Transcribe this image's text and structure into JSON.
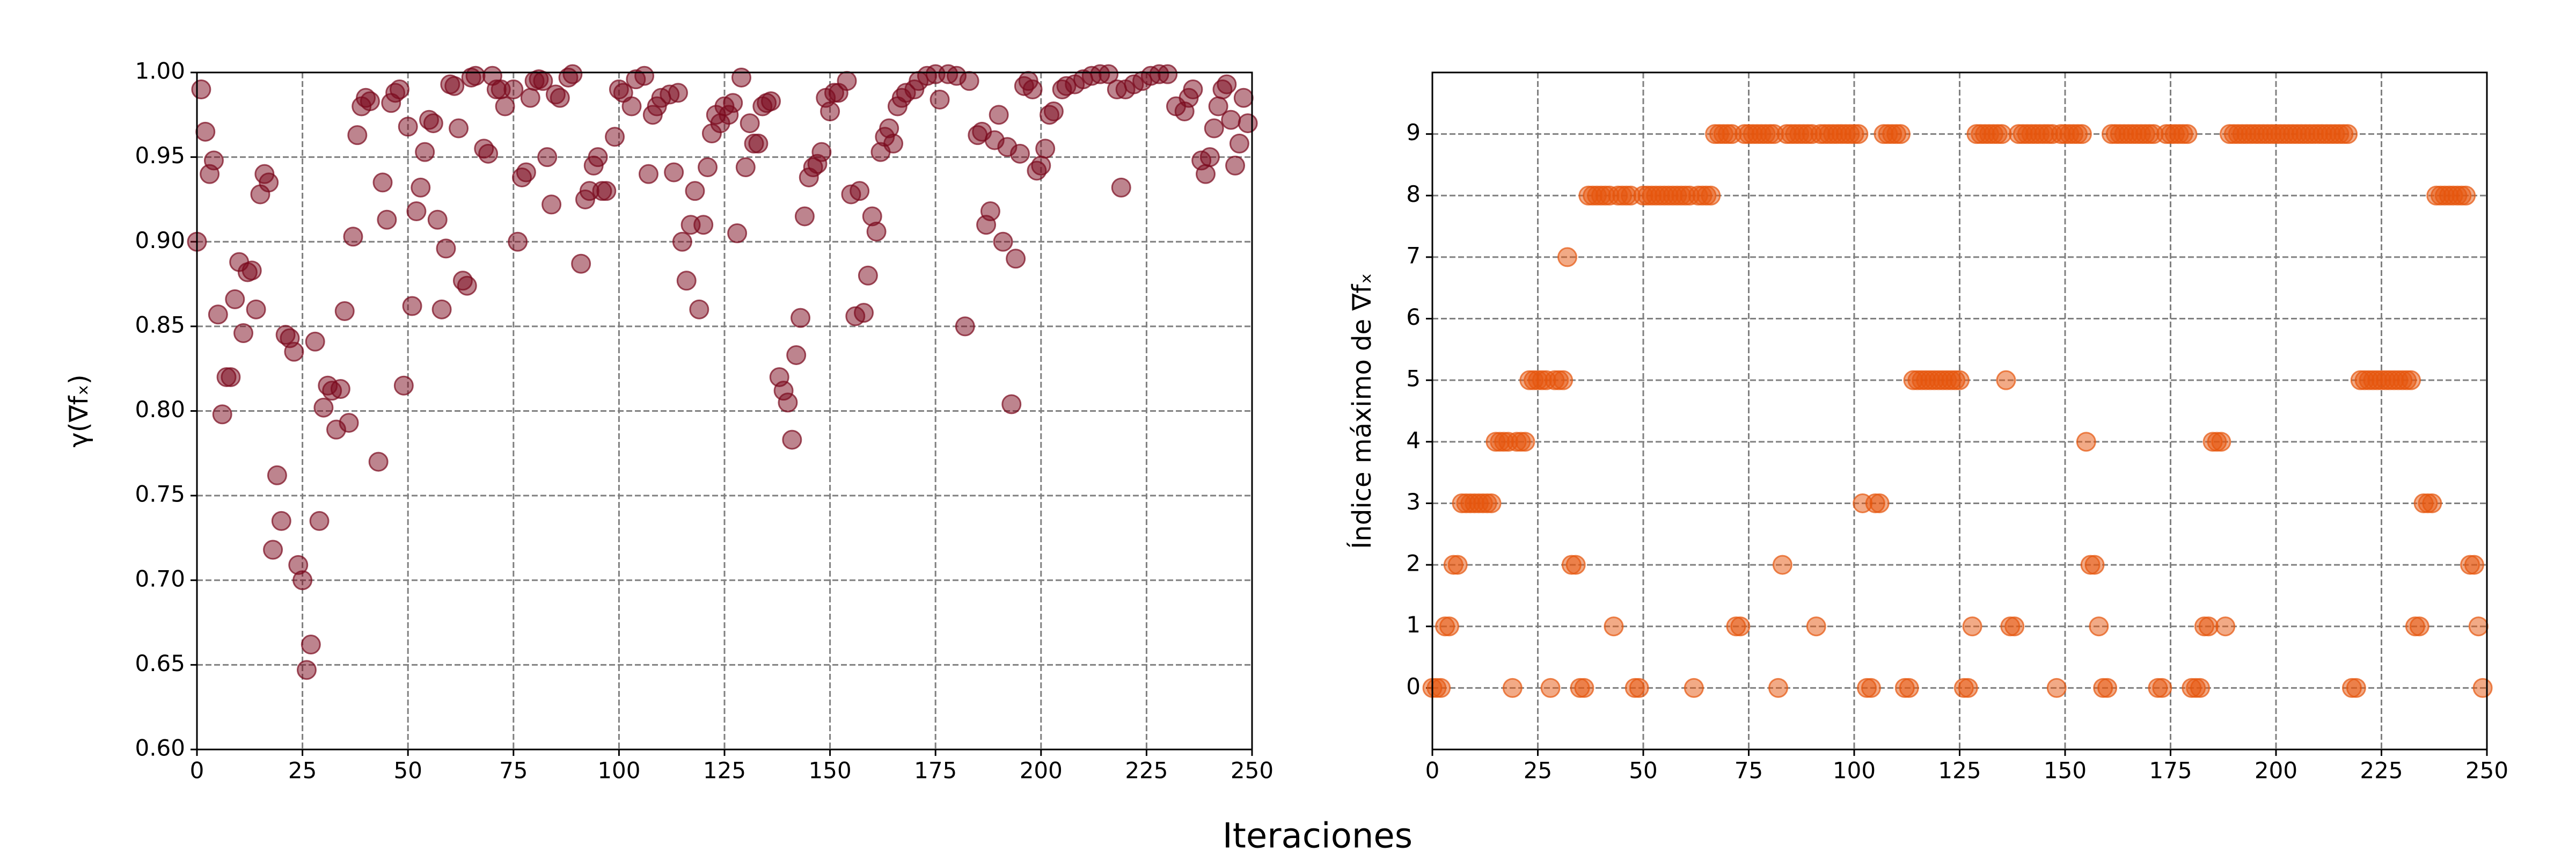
{
  "x_label": "Iteraciones",
  "chart_data": [
    {
      "type": "scatter",
      "y_label": "γ(∇fₓ)",
      "color": "#7b0a1e",
      "grid": true,
      "xlim": [
        0,
        250
      ],
      "xticks": [
        0,
        25,
        50,
        75,
        100,
        125,
        150,
        175,
        200,
        225,
        250
      ],
      "ylim": [
        0.6,
        1.0
      ],
      "yticks": [
        {
          "value": 0.6,
          "label": "0.60"
        },
        {
          "value": 0.65,
          "label": "0.65"
        },
        {
          "value": 0.7,
          "label": "0.70"
        },
        {
          "value": 0.75,
          "label": "0.75"
        },
        {
          "value": 0.8,
          "label": "0.80"
        },
        {
          "value": 0.85,
          "label": "0.85"
        },
        {
          "value": 0.9,
          "label": "0.90"
        },
        {
          "value": 0.95,
          "label": "0.95"
        },
        {
          "value": 1.0,
          "label": "1.00"
        }
      ],
      "x": [
        0,
        1,
        2,
        3,
        4,
        5,
        6,
        7,
        8,
        9,
        10,
        11,
        12,
        13,
        14,
        15,
        16,
        17,
        18,
        19,
        20,
        21,
        22,
        23,
        24,
        25,
        26,
        27,
        28,
        29,
        30,
        31,
        32,
        33,
        34,
        35,
        36,
        37,
        38,
        39,
        40,
        41,
        43,
        44,
        45,
        46,
        47,
        48,
        49,
        50,
        51,
        52,
        53,
        54,
        55,
        56,
        57,
        58,
        59,
        60,
        61,
        62,
        63,
        64,
        65,
        66,
        68,
        69,
        70,
        71,
        72,
        73,
        75,
        76,
        77,
        78,
        79,
        80,
        81,
        82,
        83,
        84,
        85,
        86,
        88,
        89,
        91,
        92,
        93,
        94,
        95,
        96,
        97,
        99,
        100,
        101,
        103,
        104,
        106,
        107,
        108,
        109,
        110,
        112,
        113,
        114,
        115,
        116,
        117,
        118,
        119,
        120,
        121,
        122,
        123,
        124,
        125,
        126,
        127,
        128,
        129,
        130,
        131,
        132,
        133,
        134,
        135,
        136,
        138,
        139,
        140,
        141,
        142,
        143,
        144,
        145,
        146,
        147,
        148,
        149,
        150,
        151,
        152,
        154,
        155,
        156,
        157,
        158,
        159,
        160,
        161,
        162,
        163,
        164,
        165,
        166,
        167,
        168,
        170,
        171,
        173,
        175,
        176,
        178,
        180,
        182,
        183,
        185,
        186,
        187,
        188,
        189,
        190,
        191,
        192,
        193,
        194,
        195,
        196,
        197,
        198,
        199,
        200,
        201,
        202,
        203,
        205,
        206,
        208,
        210,
        212,
        214,
        216,
        218,
        219,
        220,
        222,
        224,
        226,
        228,
        230,
        232,
        234,
        235,
        236,
        238,
        239,
        240,
        241,
        242,
        243,
        244,
        245,
        246,
        247,
        248,
        249
      ],
      "values": [
        0.9,
        0.99,
        0.965,
        0.94,
        0.948,
        0.857,
        0.798,
        0.82,
        0.82,
        0.866,
        0.888,
        0.846,
        0.882,
        0.883,
        0.86,
        0.928,
        0.94,
        0.935,
        0.718,
        0.762,
        0.735,
        0.845,
        0.843,
        0.835,
        0.709,
        0.7,
        0.647,
        0.662,
        0.841,
        0.735,
        0.802,
        0.815,
        0.812,
        0.789,
        0.813,
        0.859,
        0.793,
        0.903,
        0.963,
        0.98,
        0.985,
        0.983,
        0.77,
        0.935,
        0.913,
        0.982,
        0.988,
        0.99,
        0.815,
        0.968,
        0.862,
        0.918,
        0.932,
        0.953,
        0.972,
        0.97,
        0.913,
        0.86,
        0.896,
        0.993,
        0.992,
        0.967,
        0.877,
        0.874,
        0.997,
        0.998,
        0.955,
        0.952,
        0.998,
        0.99,
        0.99,
        0.98,
        0.99,
        0.9,
        0.938,
        0.941,
        0.985,
        0.995,
        0.996,
        0.995,
        0.95,
        0.922,
        0.987,
        0.985,
        0.997,
        0.999,
        0.887,
        0.925,
        0.93,
        0.945,
        0.95,
        0.93,
        0.93,
        0.962,
        0.99,
        0.988,
        0.98,
        0.996,
        0.998,
        0.94,
        0.975,
        0.98,
        0.985,
        0.987,
        0.941,
        0.988,
        0.9,
        0.877,
        0.91,
        0.93,
        0.86,
        0.91,
        0.944,
        0.964,
        0.975,
        0.97,
        0.98,
        0.975,
        0.982,
        0.905,
        0.997,
        0.944,
        0.97,
        0.958,
        0.958,
        0.98,
        0.982,
        0.983,
        0.82,
        0.812,
        0.805,
        0.783,
        0.833,
        0.855,
        0.915,
        0.938,
        0.944,
        0.946,
        0.953,
        0.985,
        0.977,
        0.988,
        0.988,
        0.995,
        0.928,
        0.856,
        0.93,
        0.858,
        0.88,
        0.915,
        0.906,
        0.953,
        0.962,
        0.967,
        0.958,
        0.98,
        0.985,
        0.988,
        0.99,
        0.995,
        0.998,
        0.999,
        0.984,
        0.999,
        0.998,
        0.85,
        0.995,
        0.963,
        0.965,
        0.91,
        0.918,
        0.96,
        0.975,
        0.9,
        0.956,
        0.804,
        0.89,
        0.952,
        0.992,
        0.995,
        0.99,
        0.942,
        0.945,
        0.955,
        0.975,
        0.977,
        0.99,
        0.992,
        0.993,
        0.996,
        0.998,
        0.999,
        0.999,
        0.99,
        0.932,
        0.99,
        0.993,
        0.995,
        0.998,
        0.999,
        0.999,
        0.98,
        0.977,
        0.985,
        0.99,
        0.948,
        0.94,
        0.95,
        0.967,
        0.98,
        0.99,
        0.993,
        0.972,
        0.945,
        0.958,
        0.985,
        0.97
      ]
    },
    {
      "type": "scatter",
      "y_label": "Índice máximo de ∇fₓ",
      "color": "#e6550d",
      "grid": true,
      "xlim": [
        0,
        250
      ],
      "xticks": [
        0,
        25,
        50,
        75,
        100,
        125,
        150,
        175,
        200,
        225,
        250
      ],
      "ylim": [
        -1,
        10
      ],
      "yticks": [
        0,
        1,
        2,
        3,
        4,
        5,
        6,
        7,
        8,
        9
      ],
      "x": [
        0,
        1,
        2,
        3,
        4,
        5,
        6,
        7,
        8,
        9,
        10,
        11,
        12,
        13,
        14,
        15,
        16,
        17,
        18,
        19,
        20,
        21,
        22,
        23,
        24,
        25,
        26,
        27,
        28,
        29,
        30,
        31,
        32,
        33,
        34,
        35,
        36,
        37,
        38,
        39,
        40,
        41,
        42,
        43,
        44,
        45,
        46,
        47,
        48,
        49,
        50,
        51,
        52,
        53,
        54,
        55,
        56,
        57,
        58,
        59,
        60,
        61,
        62,
        63,
        64,
        65,
        66,
        67,
        68,
        69,
        70,
        71,
        72,
        73,
        74,
        75,
        76,
        77,
        78,
        79,
        80,
        81,
        82,
        83,
        84,
        85,
        86,
        87,
        88,
        89,
        90,
        91,
        92,
        93,
        94,
        95,
        96,
        97,
        98,
        99,
        100,
        101,
        102,
        103,
        104,
        105,
        106,
        107,
        108,
        109,
        110,
        111,
        112,
        113,
        114,
        115,
        116,
        117,
        118,
        119,
        120,
        121,
        122,
        123,
        124,
        125,
        126,
        127,
        128,
        129,
        130,
        131,
        132,
        133,
        134,
        135,
        136,
        137,
        138,
        139,
        140,
        141,
        142,
        143,
        144,
        145,
        146,
        147,
        148,
        149,
        150,
        151,
        152,
        153,
        154,
        155,
        156,
        157,
        158,
        159,
        160,
        161,
        162,
        163,
        164,
        165,
        166,
        167,
        168,
        169,
        170,
        171,
        172,
        173,
        174,
        175,
        176,
        177,
        178,
        179,
        180,
        181,
        182,
        183,
        184,
        185,
        186,
        187,
        188,
        189,
        190,
        191,
        192,
        193,
        194,
        195,
        196,
        197,
        198,
        199,
        200,
        201,
        202,
        203,
        204,
        205,
        206,
        207,
        208,
        209,
        210,
        211,
        212,
        213,
        214,
        215,
        216,
        217,
        218,
        219,
        220,
        221,
        222,
        223,
        224,
        225,
        226,
        227,
        228,
        229,
        230,
        231,
        232,
        233,
        234,
        235,
        236,
        237,
        238,
        239,
        240,
        241,
        242,
        243,
        244,
        245,
        246,
        247,
        248,
        249
      ],
      "values": [
        0,
        0,
        0,
        1,
        1,
        2,
        2,
        3,
        3,
        3,
        3,
        3,
        3,
        3,
        3,
        4,
        4,
        4,
        4,
        0,
        4,
        4,
        4,
        5,
        5,
        5,
        5,
        5,
        0,
        5,
        5,
        5,
        7,
        2,
        2,
        0,
        0,
        8,
        8,
        8,
        8,
        8,
        8,
        1,
        8,
        8,
        8,
        8,
        0,
        0,
        8,
        8,
        8,
        8,
        8,
        8,
        8,
        8,
        8,
        8,
        8,
        8,
        0,
        8,
        8,
        8,
        8,
        9,
        9,
        9,
        9,
        9,
        1,
        1,
        9,
        9,
        9,
        9,
        9,
        9,
        9,
        9,
        0,
        2,
        9,
        9,
        9,
        9,
        9,
        9,
        9,
        1,
        9,
        9,
        9,
        9,
        9,
        9,
        9,
        9,
        9,
        9,
        3,
        0,
        0,
        3,
        3,
        9,
        9,
        9,
        9,
        9,
        0,
        0,
        5,
        5,
        5,
        5,
        5,
        5,
        5,
        5,
        5,
        5,
        5,
        5,
        0,
        0,
        1,
        9,
        9,
        9,
        9,
        9,
        9,
        9,
        5,
        1,
        1,
        9,
        9,
        9,
        9,
        9,
        9,
        9,
        9,
        9,
        0,
        9,
        9,
        9,
        9,
        9,
        9,
        4,
        2,
        2,
        1,
        0,
        0,
        9,
        9,
        9,
        9,
        9,
        9,
        9,
        9,
        9,
        9,
        9,
        0,
        0,
        9,
        9,
        9,
        9,
        9,
        9,
        0,
        0,
        0,
        1,
        1,
        4,
        4,
        4,
        1,
        9,
        9,
        9,
        9,
        9,
        9,
        9,
        9,
        9,
        9,
        9,
        9,
        9,
        9,
        9,
        9,
        9,
        9,
        9,
        9,
        9,
        9,
        9,
        9,
        9,
        9,
        9,
        9,
        9,
        0,
        0,
        5,
        5,
        5,
        5,
        5,
        5,
        5,
        5,
        5,
        5,
        5,
        5,
        5,
        1,
        1,
        3,
        3,
        3,
        8,
        8,
        8,
        8,
        8,
        8,
        8,
        8,
        2,
        2,
        1,
        0
      ]
    }
  ]
}
